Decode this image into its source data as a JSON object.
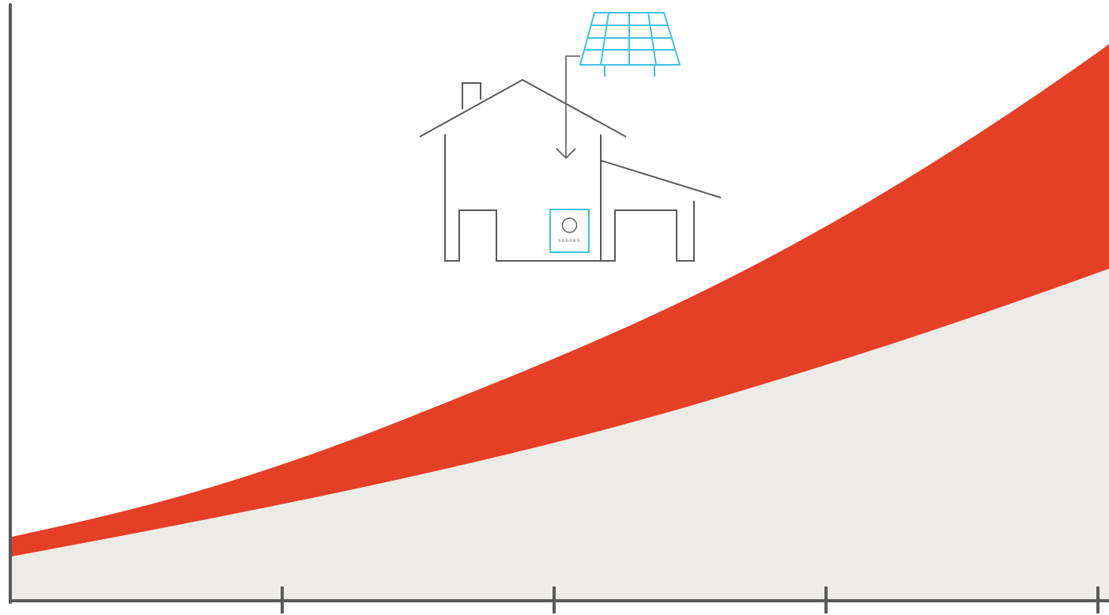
{
  "chart_data": {
    "type": "area",
    "title": "",
    "xlabel": "",
    "ylabel": "",
    "x_ticks": [
      "",
      "",
      "",
      ""
    ],
    "series": [
      {
        "name": "",
        "color": "#e53f26",
        "values": [
          {
            "x": 0.0,
            "y": 0.1
          },
          {
            "x": 0.25,
            "y": 0.32
          },
          {
            "x": 0.5,
            "y": 0.59
          },
          {
            "x": 0.75,
            "y": 0.88
          },
          {
            "x": 1.0,
            "y": 1.18
          }
        ]
      },
      {
        "name": "",
        "color": "#edebe7",
        "values": [
          {
            "x": 0.0,
            "y": 0.07
          },
          {
            "x": 0.25,
            "y": 0.2
          },
          {
            "x": 0.5,
            "y": 0.33
          },
          {
            "x": 0.75,
            "y": 0.5
          },
          {
            "x": 1.0,
            "y": 0.68
          }
        ]
      }
    ],
    "grid": false,
    "legend": "none"
  },
  "illustration": {
    "house_label": "sonnen",
    "line_color": "#58595b",
    "accent_color": "#3ec1e5",
    "icons": [
      "house-icon",
      "solar-panel-icon",
      "battery-icon",
      "arrow-down-icon"
    ]
  }
}
